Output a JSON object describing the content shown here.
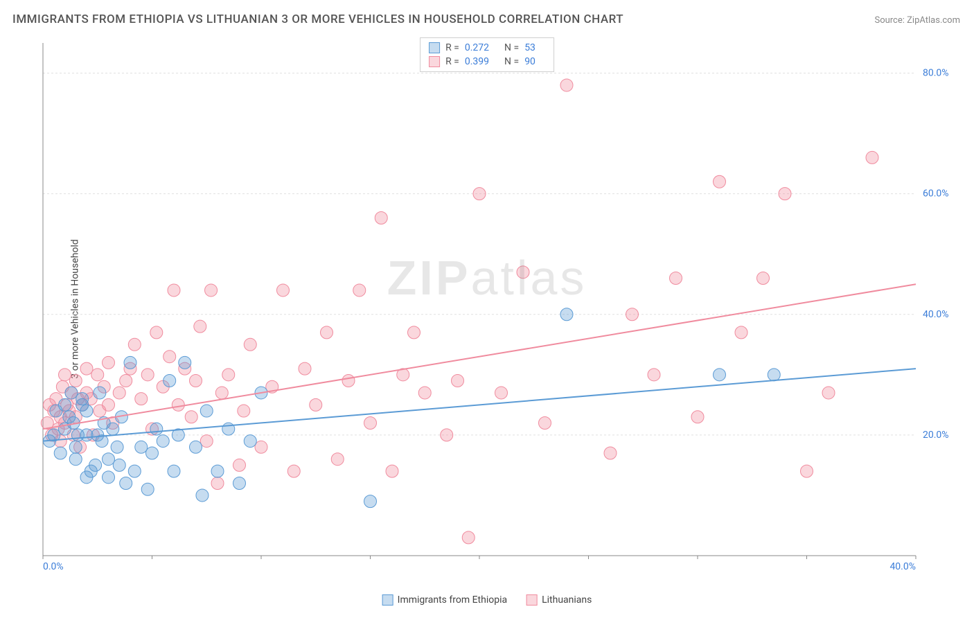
{
  "title": "IMMIGRANTS FROM ETHIOPIA VS LITHUANIAN 3 OR MORE VEHICLES IN HOUSEHOLD CORRELATION CHART",
  "source_prefix": "Source: ",
  "source_name": "ZipAtlas.com",
  "ylabel": "3 or more Vehicles in Household",
  "watermark": {
    "part1": "ZIP",
    "part2": "atlas"
  },
  "chart": {
    "type": "scatter",
    "xlim": [
      0,
      40
    ],
    "ylim": [
      0,
      85
    ],
    "xtick_labels": [
      "0.0%",
      "40.0%"
    ],
    "ytick_values": [
      20,
      40,
      60,
      80
    ],
    "ytick_labels": [
      "20.0%",
      "40.0%",
      "60.0%",
      "80.0%"
    ],
    "ytick_label_color": "#3b7dd8",
    "xtick_label_color": "#3b7dd8",
    "grid_color": "#e0e0e0",
    "axis_color": "#888888",
    "background_color": "#ffffff",
    "marker_radius": 9,
    "marker_fill_opacity": 0.35,
    "marker_stroke_opacity": 0.9,
    "line_width": 2
  },
  "series": [
    {
      "id": "ethiopia",
      "label": "Immigrants from Ethiopia",
      "color": "#5b9bd5",
      "color_fill": "rgba(91,155,213,0.35)",
      "R": "0.272",
      "N": "53",
      "trend": {
        "x1": 0,
        "y1": 19,
        "x2": 40,
        "y2": 31
      },
      "points": [
        [
          0.3,
          19
        ],
        [
          0.5,
          20
        ],
        [
          0.6,
          24
        ],
        [
          0.8,
          17
        ],
        [
          1.0,
          25
        ],
        [
          1.0,
          21
        ],
        [
          1.2,
          23
        ],
        [
          1.3,
          27
        ],
        [
          1.4,
          22
        ],
        [
          1.5,
          18
        ],
        [
          1.5,
          16
        ],
        [
          1.6,
          20
        ],
        [
          1.8,
          25
        ],
        [
          1.8,
          26
        ],
        [
          2.0,
          20
        ],
        [
          2.0,
          13
        ],
        [
          2.0,
          24
        ],
        [
          2.2,
          14
        ],
        [
          2.4,
          15
        ],
        [
          2.5,
          20
        ],
        [
          2.6,
          27
        ],
        [
          2.7,
          19
        ],
        [
          2.8,
          22
        ],
        [
          3.0,
          16
        ],
        [
          3.0,
          13
        ],
        [
          3.2,
          21
        ],
        [
          3.4,
          18
        ],
        [
          3.5,
          15
        ],
        [
          3.6,
          23
        ],
        [
          3.8,
          12
        ],
        [
          4.0,
          32
        ],
        [
          4.2,
          14
        ],
        [
          4.5,
          18
        ],
        [
          4.8,
          11
        ],
        [
          5.0,
          17
        ],
        [
          5.2,
          21
        ],
        [
          5.5,
          19
        ],
        [
          5.8,
          29
        ],
        [
          6.0,
          14
        ],
        [
          6.2,
          20
        ],
        [
          6.5,
          32
        ],
        [
          7.0,
          18
        ],
        [
          7.3,
          10
        ],
        [
          7.5,
          24
        ],
        [
          8.0,
          14
        ],
        [
          8.5,
          21
        ],
        [
          9.0,
          12
        ],
        [
          9.5,
          19
        ],
        [
          10.0,
          27
        ],
        [
          15.0,
          9
        ],
        [
          24.0,
          40
        ],
        [
          31.0,
          30
        ],
        [
          33.5,
          30
        ]
      ]
    },
    {
      "id": "lithuanians",
      "label": "Lithuanians",
      "color": "#f08b9e",
      "color_fill": "rgba(240,139,158,0.35)",
      "R": "0.399",
      "N": "90",
      "trend": {
        "x1": 0,
        "y1": 21,
        "x2": 40,
        "y2": 45
      },
      "points": [
        [
          0.2,
          22
        ],
        [
          0.3,
          25
        ],
        [
          0.4,
          20
        ],
        [
          0.5,
          24
        ],
        [
          0.6,
          26
        ],
        [
          0.7,
          21
        ],
        [
          0.8,
          23
        ],
        [
          0.8,
          19
        ],
        [
          0.9,
          28
        ],
        [
          1.0,
          22
        ],
        [
          1.0,
          30
        ],
        [
          1.1,
          25
        ],
        [
          1.2,
          24
        ],
        [
          1.3,
          27
        ],
        [
          1.4,
          20
        ],
        [
          1.5,
          29
        ],
        [
          1.5,
          23
        ],
        [
          1.6,
          26
        ],
        [
          1.7,
          18
        ],
        [
          1.8,
          25
        ],
        [
          2.0,
          27
        ],
        [
          2.0,
          31
        ],
        [
          2.2,
          26
        ],
        [
          2.3,
          20
        ],
        [
          2.5,
          30
        ],
        [
          2.6,
          24
        ],
        [
          2.8,
          28
        ],
        [
          3.0,
          32
        ],
        [
          3.0,
          25
        ],
        [
          3.2,
          22
        ],
        [
          3.5,
          27
        ],
        [
          3.8,
          29
        ],
        [
          4.0,
          31
        ],
        [
          4.2,
          35
        ],
        [
          4.5,
          26
        ],
        [
          4.8,
          30
        ],
        [
          5.0,
          21
        ],
        [
          5.2,
          37
        ],
        [
          5.5,
          28
        ],
        [
          5.8,
          33
        ],
        [
          6.0,
          44
        ],
        [
          6.2,
          25
        ],
        [
          6.5,
          31
        ],
        [
          6.8,
          23
        ],
        [
          7.0,
          29
        ],
        [
          7.2,
          38
        ],
        [
          7.5,
          19
        ],
        [
          7.7,
          44
        ],
        [
          8.0,
          12
        ],
        [
          8.2,
          27
        ],
        [
          8.5,
          30
        ],
        [
          9.0,
          15
        ],
        [
          9.2,
          24
        ],
        [
          9.5,
          35
        ],
        [
          10.0,
          18
        ],
        [
          10.5,
          28
        ],
        [
          11.0,
          44
        ],
        [
          11.5,
          14
        ],
        [
          12.0,
          31
        ],
        [
          12.5,
          25
        ],
        [
          13.0,
          37
        ],
        [
          13.5,
          16
        ],
        [
          14.0,
          29
        ],
        [
          14.5,
          44
        ],
        [
          15.0,
          22
        ],
        [
          15.5,
          56
        ],
        [
          16.0,
          14
        ],
        [
          16.5,
          30
        ],
        [
          17.0,
          37
        ],
        [
          17.5,
          27
        ],
        [
          18.5,
          20
        ],
        [
          19.0,
          29
        ],
        [
          19.5,
          3
        ],
        [
          20.0,
          60
        ],
        [
          21.0,
          27
        ],
        [
          22.0,
          47
        ],
        [
          23.0,
          22
        ],
        [
          24.0,
          78
        ],
        [
          26.0,
          17
        ],
        [
          27.0,
          40
        ],
        [
          28.0,
          30
        ],
        [
          29.0,
          46
        ],
        [
          30.0,
          23
        ],
        [
          31.0,
          62
        ],
        [
          32.0,
          37
        ],
        [
          33.0,
          46
        ],
        [
          34.0,
          60
        ],
        [
          35.0,
          14
        ],
        [
          38.0,
          66
        ],
        [
          36.0,
          27
        ]
      ]
    }
  ],
  "stats_labels": {
    "R": "R =",
    "N": "N ="
  },
  "legend_labels": {
    "ethiopia": "Immigrants from Ethiopia",
    "lithuanians": "Lithuanians"
  }
}
